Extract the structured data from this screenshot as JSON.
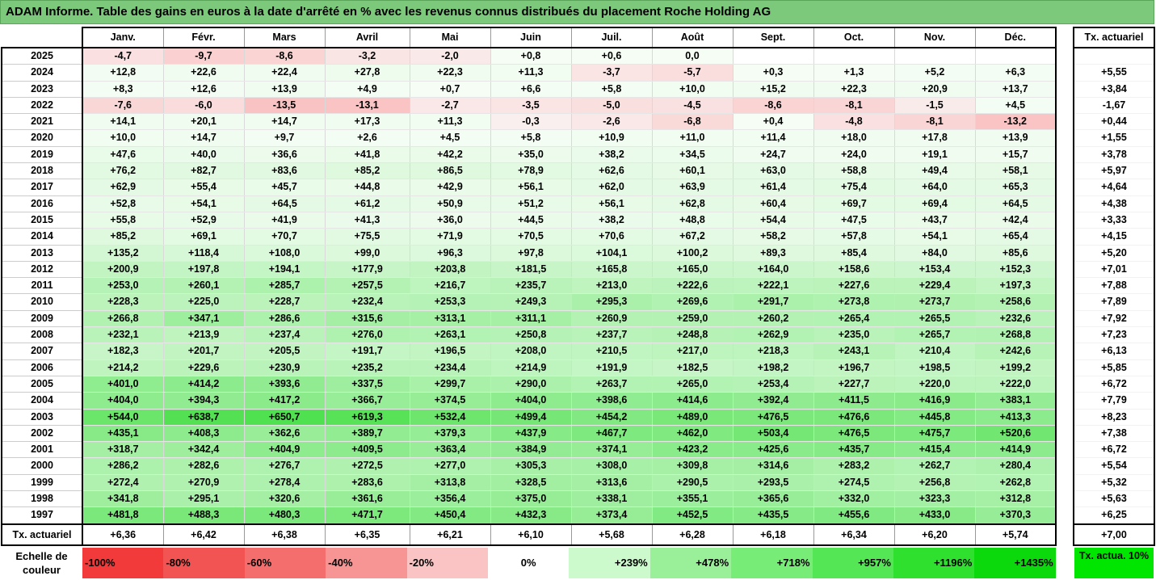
{
  "title": "ADAM Informe. Table des gains en euros à la date d'arrêté en % avec les revenus connus distribués du placement Roche Holding AG",
  "months": [
    "Janv.",
    "Févr.",
    "Mars",
    "Avril",
    "Mai",
    "Juin",
    "Juil.",
    "Août",
    "Sept.",
    "Oct.",
    "Nov.",
    "Déc."
  ],
  "rate_header": "Tx. actuariel",
  "rows": [
    {
      "year": "2025",
      "values": [
        "-4,7",
        "-9,7",
        "-8,6",
        "-3,2",
        "-2,0",
        "+0,8",
        "+0,6",
        "0,0",
        "",
        "",
        "",
        ""
      ],
      "rate": ""
    },
    {
      "year": "2024",
      "values": [
        "+12,8",
        "+22,6",
        "+22,4",
        "+27,8",
        "+22,3",
        "+11,3",
        "-3,7",
        "-5,7",
        "+0,3",
        "+1,3",
        "+5,2",
        "+6,3"
      ],
      "rate": "+5,55"
    },
    {
      "year": "2023",
      "values": [
        "+8,3",
        "+12,6",
        "+13,9",
        "+4,9",
        "+0,7",
        "+6,6",
        "+5,8",
        "+10,0",
        "+15,2",
        "+22,3",
        "+20,9",
        "+13,7"
      ],
      "rate": "+3,84"
    },
    {
      "year": "2022",
      "values": [
        "-7,6",
        "-6,0",
        "-13,5",
        "-13,1",
        "-2,7",
        "-3,5",
        "-5,0",
        "-4,5",
        "-8,6",
        "-8,1",
        "-1,5",
        "+4,5"
      ],
      "rate": "-1,67"
    },
    {
      "year": "2021",
      "values": [
        "+14,1",
        "+20,1",
        "+14,7",
        "+17,3",
        "+11,3",
        "-0,3",
        "-2,6",
        "-6,8",
        "+0,4",
        "-4,8",
        "-8,1",
        "-13,2"
      ],
      "rate": "+0,44"
    },
    {
      "year": "2020",
      "values": [
        "+10,0",
        "+14,7",
        "+9,7",
        "+2,6",
        "+4,5",
        "+5,8",
        "+10,9",
        "+11,0",
        "+11,4",
        "+18,0",
        "+17,8",
        "+13,9"
      ],
      "rate": "+1,55"
    },
    {
      "year": "2019",
      "values": [
        "+47,6",
        "+40,0",
        "+36,6",
        "+41,8",
        "+42,2",
        "+35,0",
        "+38,2",
        "+34,5",
        "+24,7",
        "+24,0",
        "+19,1",
        "+15,7"
      ],
      "rate": "+3,78"
    },
    {
      "year": "2018",
      "values": [
        "+76,2",
        "+82,7",
        "+83,6",
        "+85,2",
        "+86,5",
        "+78,9",
        "+62,6",
        "+60,1",
        "+63,0",
        "+58,8",
        "+49,4",
        "+58,1"
      ],
      "rate": "+5,97"
    },
    {
      "year": "2017",
      "values": [
        "+62,9",
        "+55,4",
        "+45,7",
        "+44,8",
        "+42,9",
        "+56,1",
        "+62,0",
        "+63,9",
        "+61,4",
        "+75,4",
        "+64,0",
        "+65,3"
      ],
      "rate": "+4,64"
    },
    {
      "year": "2016",
      "values": [
        "+52,8",
        "+54,1",
        "+64,5",
        "+61,2",
        "+50,9",
        "+51,2",
        "+56,1",
        "+62,8",
        "+60,4",
        "+69,7",
        "+69,4",
        "+64,5"
      ],
      "rate": "+4,38"
    },
    {
      "year": "2015",
      "values": [
        "+55,8",
        "+52,9",
        "+41,9",
        "+41,3",
        "+36,0",
        "+44,5",
        "+38,2",
        "+48,8",
        "+54,4",
        "+47,5",
        "+43,7",
        "+42,4"
      ],
      "rate": "+3,33"
    },
    {
      "year": "2014",
      "values": [
        "+85,2",
        "+69,1",
        "+70,7",
        "+75,5",
        "+71,9",
        "+70,5",
        "+70,6",
        "+67,2",
        "+58,2",
        "+57,8",
        "+54,1",
        "+65,4"
      ],
      "rate": "+4,15"
    },
    {
      "year": "2013",
      "values": [
        "+135,2",
        "+118,4",
        "+108,0",
        "+99,0",
        "+96,3",
        "+97,8",
        "+104,1",
        "+100,2",
        "+89,3",
        "+85,4",
        "+84,0",
        "+85,6"
      ],
      "rate": "+5,20"
    },
    {
      "year": "2012",
      "values": [
        "+200,9",
        "+197,8",
        "+194,1",
        "+177,9",
        "+203,8",
        "+181,5",
        "+165,8",
        "+165,0",
        "+164,0",
        "+158,6",
        "+153,4",
        "+152,3"
      ],
      "rate": "+7,01"
    },
    {
      "year": "2011",
      "values": [
        "+253,0",
        "+260,1",
        "+285,7",
        "+257,5",
        "+216,7",
        "+235,7",
        "+213,0",
        "+222,6",
        "+222,1",
        "+227,6",
        "+229,4",
        "+197,3"
      ],
      "rate": "+7,88"
    },
    {
      "year": "2010",
      "values": [
        "+228,3",
        "+225,0",
        "+228,7",
        "+232,4",
        "+253,3",
        "+249,3",
        "+295,3",
        "+269,6",
        "+291,7",
        "+273,8",
        "+273,7",
        "+258,6"
      ],
      "rate": "+7,89"
    },
    {
      "year": "2009",
      "values": [
        "+266,8",
        "+347,1",
        "+286,6",
        "+315,6",
        "+313,1",
        "+311,1",
        "+260,9",
        "+259,0",
        "+260,2",
        "+265,4",
        "+265,5",
        "+232,6"
      ],
      "rate": "+7,92"
    },
    {
      "year": "2008",
      "values": [
        "+232,1",
        "+213,9",
        "+237,4",
        "+276,0",
        "+263,1",
        "+250,8",
        "+237,7",
        "+248,8",
        "+262,9",
        "+235,0",
        "+265,7",
        "+268,8"
      ],
      "rate": "+7,23"
    },
    {
      "year": "2007",
      "values": [
        "+182,3",
        "+201,7",
        "+205,5",
        "+191,7",
        "+196,5",
        "+208,0",
        "+210,5",
        "+217,0",
        "+218,3",
        "+243,1",
        "+210,4",
        "+242,6"
      ],
      "rate": "+6,13"
    },
    {
      "year": "2006",
      "values": [
        "+214,2",
        "+229,6",
        "+230,9",
        "+235,2",
        "+234,4",
        "+214,9",
        "+191,9",
        "+182,5",
        "+198,2",
        "+196,7",
        "+198,5",
        "+199,2"
      ],
      "rate": "+5,85"
    },
    {
      "year": "2005",
      "values": [
        "+401,0",
        "+414,2",
        "+393,6",
        "+337,5",
        "+299,7",
        "+290,0",
        "+263,7",
        "+265,0",
        "+253,4",
        "+227,7",
        "+220,0",
        "+222,0"
      ],
      "rate": "+6,72"
    },
    {
      "year": "2004",
      "values": [
        "+404,0",
        "+394,3",
        "+417,2",
        "+366,7",
        "+374,5",
        "+404,0",
        "+398,6",
        "+414,6",
        "+392,4",
        "+411,5",
        "+416,9",
        "+383,1"
      ],
      "rate": "+7,79"
    },
    {
      "year": "2003",
      "values": [
        "+544,0",
        "+638,7",
        "+650,7",
        "+619,3",
        "+532,4",
        "+499,4",
        "+454,2",
        "+489,0",
        "+476,5",
        "+476,6",
        "+445,8",
        "+413,3"
      ],
      "rate": "+8,23"
    },
    {
      "year": "2002",
      "values": [
        "+435,1",
        "+408,3",
        "+362,6",
        "+389,7",
        "+379,3",
        "+437,9",
        "+467,7",
        "+462,0",
        "+503,4",
        "+476,5",
        "+475,7",
        "+520,6"
      ],
      "rate": "+7,38"
    },
    {
      "year": "2001",
      "values": [
        "+318,7",
        "+342,4",
        "+404,9",
        "+409,5",
        "+363,4",
        "+384,9",
        "+374,1",
        "+423,2",
        "+425,6",
        "+435,7",
        "+415,4",
        "+414,9"
      ],
      "rate": "+6,72"
    },
    {
      "year": "2000",
      "values": [
        "+286,2",
        "+282,6",
        "+276,7",
        "+272,5",
        "+277,0",
        "+305,3",
        "+308,0",
        "+309,8",
        "+314,6",
        "+283,2",
        "+262,7",
        "+280,4"
      ],
      "rate": "+5,54"
    },
    {
      "year": "1999",
      "values": [
        "+272,4",
        "+270,9",
        "+278,4",
        "+283,6",
        "+313,8",
        "+328,5",
        "+313,6",
        "+290,5",
        "+293,5",
        "+274,5",
        "+256,8",
        "+262,8"
      ],
      "rate": "+5,32"
    },
    {
      "year": "1998",
      "values": [
        "+341,8",
        "+295,1",
        "+320,6",
        "+361,6",
        "+356,4",
        "+375,0",
        "+338,1",
        "+355,1",
        "+365,6",
        "+332,0",
        "+323,3",
        "+312,8"
      ],
      "rate": "+5,63"
    },
    {
      "year": "1997",
      "values": [
        "+481,8",
        "+488,3",
        "+480,3",
        "+471,7",
        "+450,4",
        "+432,3",
        "+373,4",
        "+452,5",
        "+435,5",
        "+455,6",
        "+433,0",
        "+370,3"
      ],
      "rate": "+6,25"
    }
  ],
  "footer": {
    "label": "Tx. actuariel",
    "values": [
      "+6,36",
      "+6,42",
      "+6,38",
      "+6,35",
      "+6,21",
      "+6,10",
      "+5,68",
      "+6,28",
      "+6,18",
      "+6,34",
      "+6,20",
      "+5,74"
    ],
    "rate": "+7,00"
  },
  "legend": {
    "label": "Echelle de couleur",
    "items": [
      {
        "text": "-100%",
        "color": "#f23a3a",
        "align": "left"
      },
      {
        "text": "-80%",
        "color": "#f25454",
        "align": "left"
      },
      {
        "text": "-60%",
        "color": "#f46e6e",
        "align": "left"
      },
      {
        "text": "-40%",
        "color": "#f79494",
        "align": "left"
      },
      {
        "text": "-20%",
        "color": "#fbc4c4",
        "align": "left"
      },
      {
        "text": "0%",
        "color": "#ffffff",
        "align": "center"
      },
      {
        "text": "+239%",
        "color": "#ccfacc",
        "align": "right"
      },
      {
        "text": "+478%",
        "color": "#99f099",
        "align": "right"
      },
      {
        "text": "+718%",
        "color": "#77ec77",
        "align": "right"
      },
      {
        "text": "+957%",
        "color": "#55e655",
        "align": "right"
      },
      {
        "text": "+1196%",
        "color": "#2fe02f",
        "align": "right"
      },
      {
        "text": "+1435%",
        "color": "#0bd90b",
        "align": "right"
      }
    ],
    "rate_label": "Tx. actua. 10%",
    "rate_color": "#00e600"
  },
  "colors": {
    "title_bg": "#7cc97c",
    "negative_cell": "#f7c6c6",
    "positive_cell_max": "#4fe04f"
  }
}
